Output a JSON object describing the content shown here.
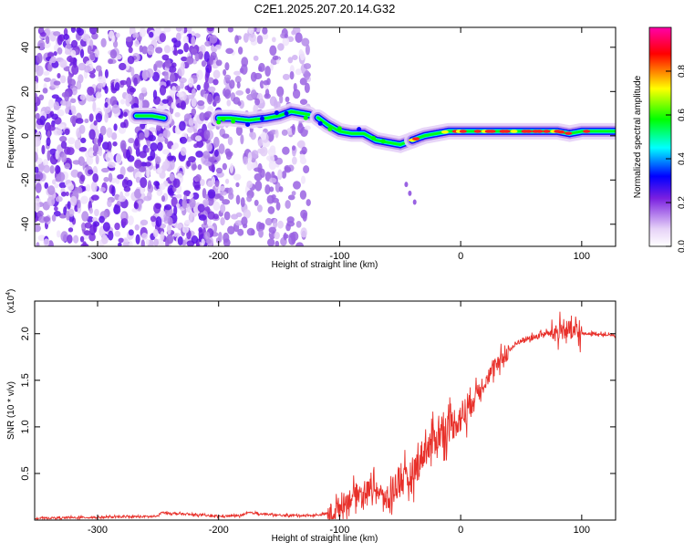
{
  "title": "C2E1.2025.207.20.14.G32",
  "chart_data": [
    {
      "type": "heatmap",
      "xlabel": "Height of straight line (km)",
      "ylabel": "Frequency (Hz)",
      "xlim": [
        -352,
        128
      ],
      "ylim": [
        -50,
        49
      ],
      "x_ticks": [
        -300,
        -200,
        -100,
        0,
        100
      ],
      "y_ticks": [
        -40,
        -20,
        0,
        20,
        40
      ],
      "colorbar": {
        "label": "Normalized spectral amplitude",
        "range": [
          0,
          1
        ],
        "ticks": [
          "0.0",
          "0.2",
          "0.4",
          "0.6",
          "0.8"
        ],
        "colors": [
          "#ffffff",
          "#e6d2f7",
          "#7a1fe0",
          "#0000ff",
          "#00ffff",
          "#00ff00",
          "#ffff00",
          "#ff0000",
          "#ff00aa"
        ]
      },
      "ridge": {
        "x": [
          -268,
          -255,
          -245,
          -200,
          -190,
          -175,
          -160,
          -150,
          -140,
          -130,
          -120,
          -110,
          -100,
          -90,
          -80,
          -70,
          -60,
          -50,
          -45,
          -40,
          -30,
          -20,
          -10,
          0,
          20,
          40,
          60,
          80,
          90,
          100,
          110,
          128
        ],
        "y": [
          9,
          9,
          8,
          8,
          8,
          7,
          8,
          9,
          11,
          10,
          9,
          5,
          2,
          1,
          1,
          -2,
          -3,
          -4,
          -3,
          -2,
          0,
          1,
          2,
          2,
          2,
          2,
          2,
          2,
          1,
          2,
          2,
          2
        ]
      },
      "noise_band": {
        "x_start": -352,
        "x_end": -125
      }
    },
    {
      "type": "line",
      "xlabel": "Height of straight line (km)",
      "ylabel": "SNR (10 * v/v)",
      "y_multiplier": "(x10",
      "y_multiplier_exp": "4",
      "xlim": [
        -352,
        128
      ],
      "ylim": [
        0,
        2.35
      ],
      "x_ticks": [
        -300,
        -200,
        -100,
        0,
        100
      ],
      "y_ticks": [
        "0.5",
        "1.0",
        "1.5",
        "2.0"
      ],
      "color": "#e8302a",
      "series": [
        {
          "x": [
            -352,
            -300,
            -250,
            -248,
            -200,
            -180,
            -175,
            -150,
            -120,
            -105,
            -100,
            -95,
            -90,
            -85,
            -80,
            -75,
            -70,
            -65,
            -60,
            -55,
            -50,
            -45,
            -40,
            -35,
            -30,
            -25,
            -20,
            -15,
            -10,
            -5,
            0,
            5,
            10,
            15,
            20,
            25,
            30,
            35,
            40,
            45,
            50,
            60,
            70,
            80,
            85,
            90,
            95,
            100,
            110,
            120,
            128
          ],
          "y": [
            0.02,
            0.03,
            0.04,
            0.08,
            0.04,
            0.05,
            0.08,
            0.05,
            0.05,
            0.08,
            0.15,
            0.2,
            0.25,
            0.3,
            0.28,
            0.35,
            0.35,
            0.25,
            0.2,
            0.35,
            0.45,
            0.4,
            0.5,
            0.6,
            0.75,
            0.8,
            0.9,
            0.95,
            1.0,
            1.05,
            1.1,
            1.2,
            1.3,
            1.4,
            1.5,
            1.58,
            1.65,
            1.75,
            1.82,
            1.88,
            1.93,
            1.96,
            2.0,
            2.02,
            2.05,
            2.03,
            2.0,
            2.0,
            2.0,
            1.99,
            1.98
          ]
        }
      ]
    }
  ]
}
